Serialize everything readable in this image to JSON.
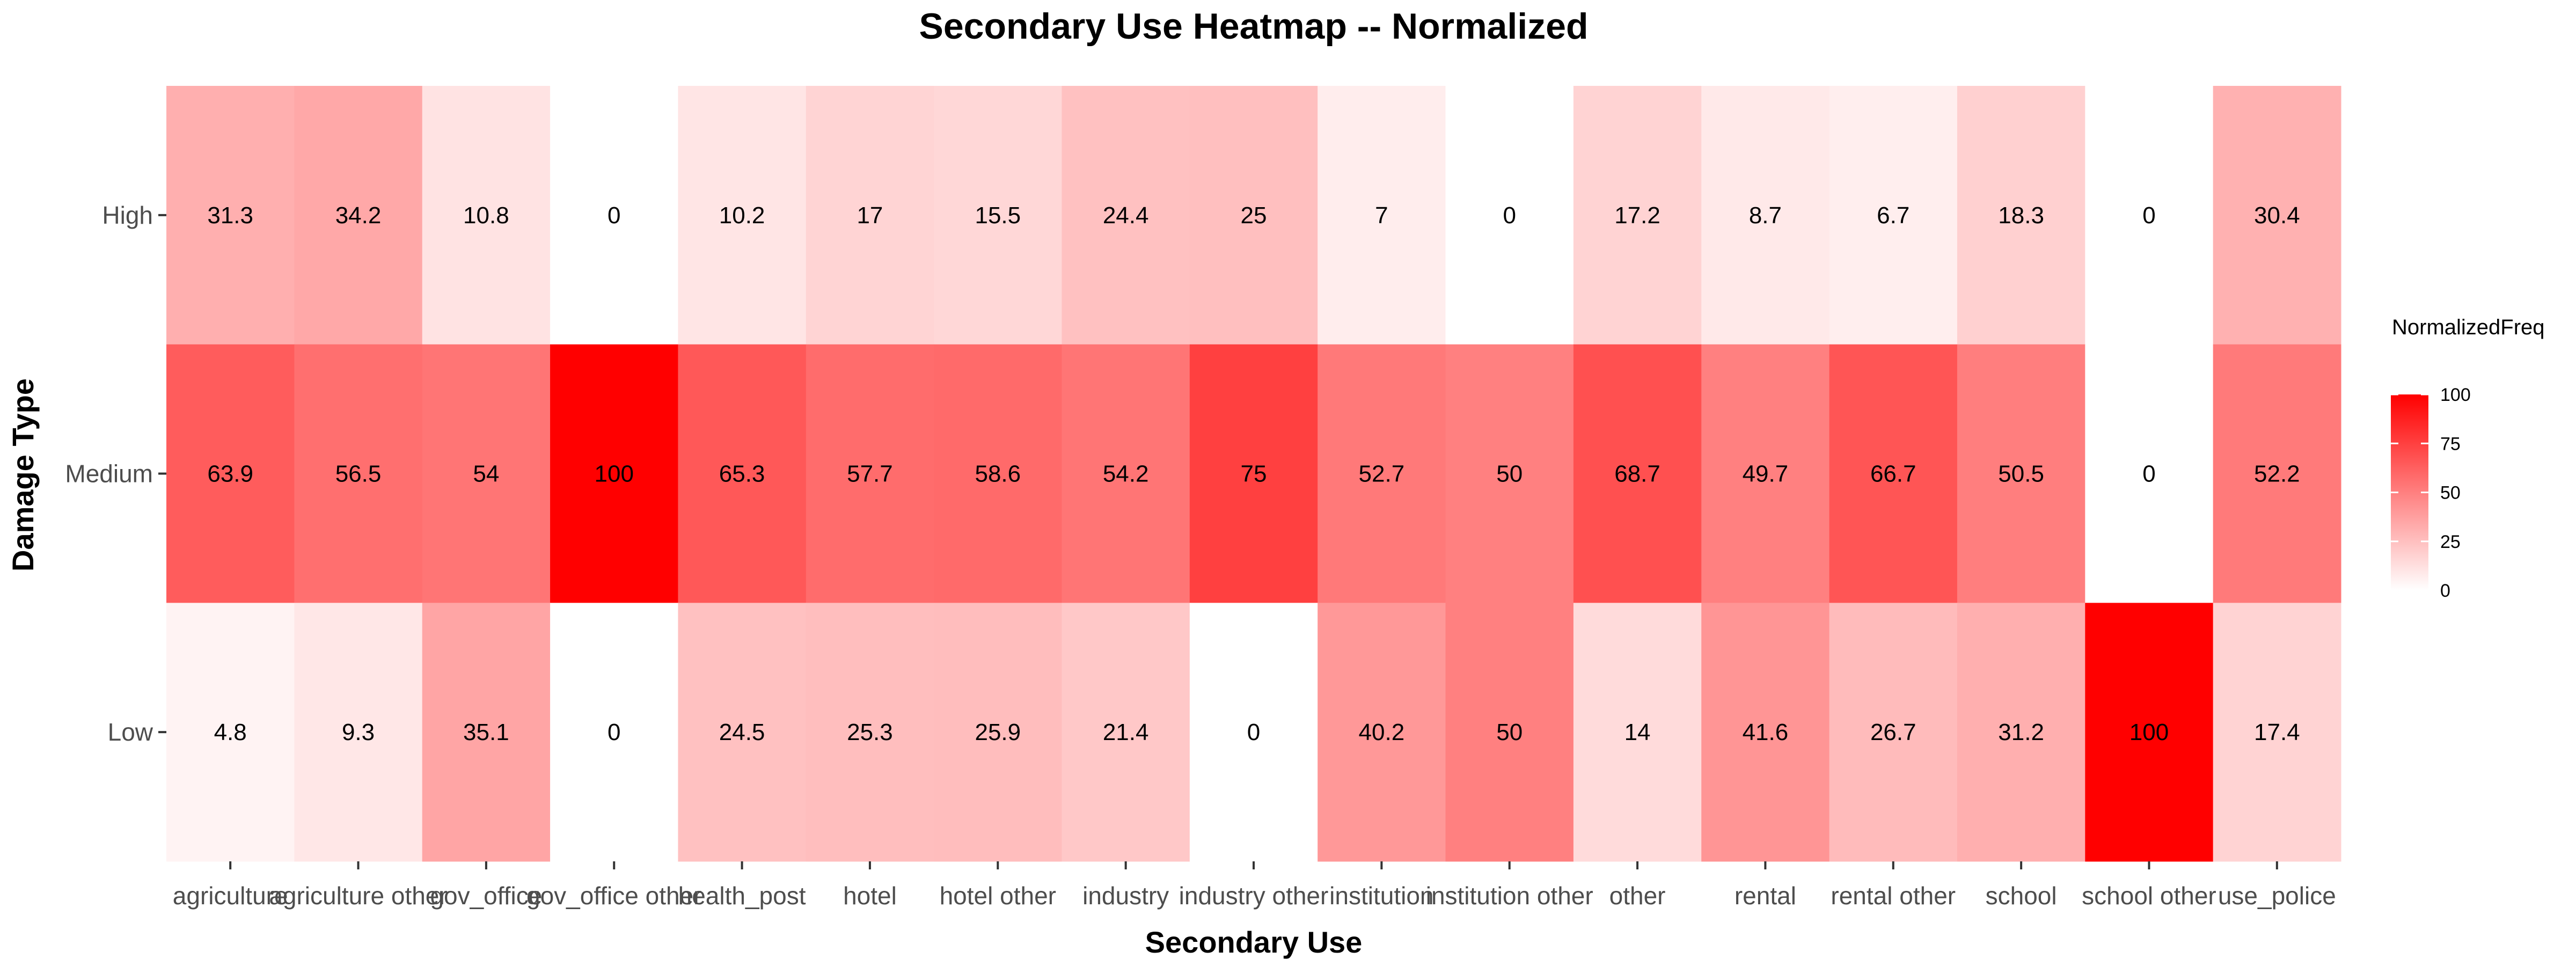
{
  "chart_data": {
    "type": "heatmap",
    "title": "Secondary Use Heatmap -- Normalized",
    "xlabel": "Secondary Use",
    "ylabel": "Damage Type",
    "x_categories": [
      "agriculture",
      "agriculture other",
      "gov_office",
      "gov_office other",
      "health_post",
      "hotel",
      "hotel other",
      "industry",
      "industry other",
      "institution",
      "institution other",
      "other",
      "rental",
      "rental other",
      "school",
      "school other",
      "use_police"
    ],
    "y_categories": [
      "High",
      "Medium",
      "Low"
    ],
    "values": [
      [
        31.3,
        34.2,
        10.8,
        0,
        10.2,
        17,
        15.5,
        24.4,
        25,
        7,
        0,
        17.2,
        8.7,
        6.7,
        18.3,
        0,
        30.4
      ],
      [
        63.9,
        56.5,
        54,
        100,
        65.3,
        57.7,
        58.6,
        54.2,
        75,
        52.7,
        50,
        68.7,
        49.7,
        66.7,
        50.5,
        0,
        52.2
      ],
      [
        4.8,
        9.3,
        35.1,
        0,
        24.5,
        25.3,
        25.9,
        21.4,
        0,
        40.2,
        50,
        14,
        41.6,
        26.7,
        31.2,
        100,
        17.4
      ]
    ],
    "value_range": [
      0,
      100
    ],
    "color_low": "#ffffff",
    "color_high": "#ff0000",
    "legend": {
      "title": "NormalizedFreq",
      "ticks": [
        "0",
        "25",
        "50",
        "75",
        "100"
      ],
      "position": "right"
    },
    "grid": false
  }
}
